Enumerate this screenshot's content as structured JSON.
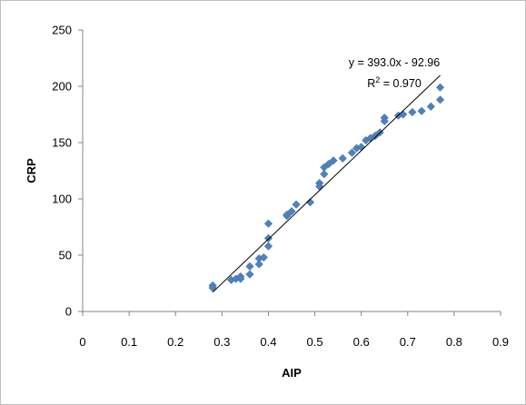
{
  "chart_data": {
    "type": "scatter",
    "xlabel": "AIP",
    "ylabel": "CRP",
    "xlim": [
      0,
      0.9
    ],
    "ylim": [
      0,
      250
    ],
    "xticks": [
      "0",
      "0.1",
      "0.2",
      "0.3",
      "0.4",
      "0.5",
      "0.6",
      "0.7",
      "0.8",
      "0.9"
    ],
    "yticks": [
      "0",
      "50",
      "100",
      "150",
      "200",
      "250"
    ],
    "grid": false,
    "marker_color": "#4f81bd",
    "trendline": {
      "slope": 393.0,
      "intercept": -92.96,
      "x_range": [
        0.28,
        0.77
      ],
      "color": "#000000",
      "equation_label": "y = 393.0x - 92.96",
      "r2_prefix": "R",
      "r2_sup": "2",
      "r2_suffix": " = 0.970"
    },
    "series": [
      {
        "points": [
          [
            0.28,
            23
          ],
          [
            0.28,
            21
          ],
          [
            0.32,
            28
          ],
          [
            0.33,
            29
          ],
          [
            0.34,
            31
          ],
          [
            0.34,
            29
          ],
          [
            0.36,
            40
          ],
          [
            0.36,
            33
          ],
          [
            0.38,
            47
          ],
          [
            0.38,
            42
          ],
          [
            0.39,
            48
          ],
          [
            0.4,
            78
          ],
          [
            0.4,
            65
          ],
          [
            0.4,
            58
          ],
          [
            0.44,
            85
          ],
          [
            0.44,
            86
          ],
          [
            0.45,
            89
          ],
          [
            0.46,
            95
          ],
          [
            0.49,
            97
          ],
          [
            0.51,
            114
          ],
          [
            0.51,
            111
          ],
          [
            0.52,
            128
          ],
          [
            0.52,
            122
          ],
          [
            0.53,
            131
          ],
          [
            0.54,
            134
          ],
          [
            0.56,
            136
          ],
          [
            0.58,
            141
          ],
          [
            0.59,
            145
          ],
          [
            0.6,
            146
          ],
          [
            0.61,
            152
          ],
          [
            0.62,
            154
          ],
          [
            0.63,
            156
          ],
          [
            0.64,
            159
          ],
          [
            0.65,
            172
          ],
          [
            0.65,
            169
          ],
          [
            0.68,
            174
          ],
          [
            0.69,
            175
          ],
          [
            0.71,
            177
          ],
          [
            0.73,
            178
          ],
          [
            0.75,
            182
          ],
          [
            0.77,
            199
          ],
          [
            0.77,
            188
          ]
        ]
      }
    ]
  }
}
